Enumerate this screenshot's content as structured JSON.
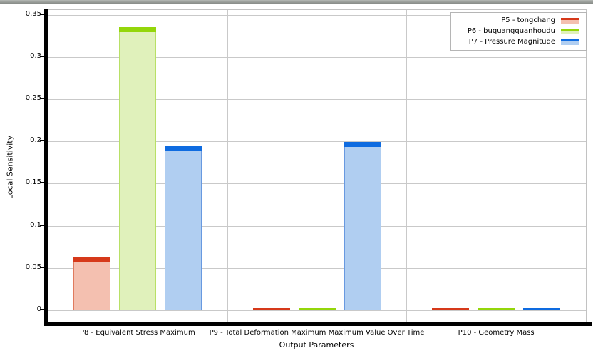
{
  "chart_data": {
    "type": "bar",
    "title": "",
    "xlabel": "Output Parameters",
    "ylabel": "Local Sensitivity",
    "categories": [
      "P8 - Equivalent Stress Maximum",
      "P9 - Total Deformation Maximum Maximum Value Over Time",
      "P10 - Geometry Mass"
    ],
    "series": [
      {
        "name": "P5 - tongchang",
        "values": [
          0.063,
          0.002,
          0.001
        ],
        "colors": {
          "cap": "#d6391a",
          "fill": "#f4c0b0",
          "border": "#e07a5e"
        }
      },
      {
        "name": "P6 - buquangquanhoudu",
        "values": [
          0.335,
          0.001,
          0.001
        ],
        "colors": {
          "cap": "#94d60a",
          "fill": "#e0f1bb",
          "border": "#b8e066"
        }
      },
      {
        "name": "P7 - Pressure Magnitude",
        "values": [
          0.195,
          0.199,
          0.001
        ],
        "colors": {
          "cap": "#0e6be0",
          "fill": "#b0cef1",
          "border": "#6899e0"
        }
      }
    ],
    "ylim": [
      0,
      0.35
    ],
    "yticks": [
      0,
      0.05,
      0.1,
      0.15,
      0.2,
      0.25,
      0.3,
      0.35
    ],
    "ytick_labels": [
      "0",
      "0.05",
      "0.1",
      "0.15",
      "0.2",
      "0.25",
      "0.3",
      "0.35"
    ],
    "grid": true,
    "legend_position": "top-right"
  }
}
